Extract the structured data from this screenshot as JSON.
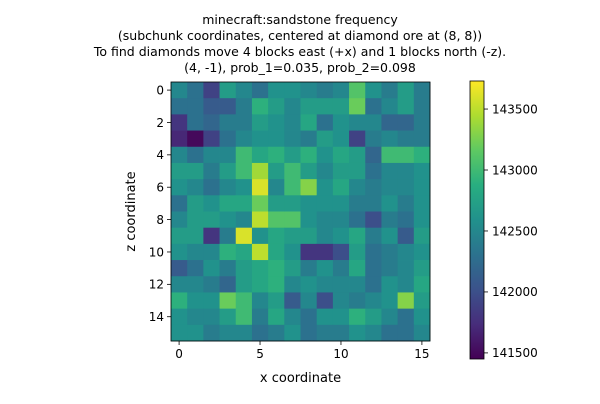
{
  "chart_data": {
    "type": "heatmap",
    "title_lines": [
      "minecraft:sandstone frequency",
      "(subchunk coordinates, centered at diamond ore at (8, 8))",
      "To find diamonds move 4 blocks east (+x) and 1 blocks north (-z).",
      "(4, -1), prob_1=0.035, prob_2=0.098"
    ],
    "xlabel": "x coordinate",
    "ylabel": "z coordinate",
    "x_ticks": [
      0,
      5,
      10,
      15
    ],
    "y_ticks": [
      0,
      2,
      4,
      6,
      8,
      10,
      12,
      14
    ],
    "grid_size": 16,
    "colorbar": {
      "min": 141450,
      "max": 143730,
      "ticks": [
        141500,
        142000,
        142500,
        143000,
        143500
      ],
      "tick_labels": [
        "141500",
        "142000",
        "142500",
        "143000",
        "143500"
      ]
    },
    "matrix": [
      [
        142500,
        142300,
        141900,
        142700,
        142500,
        142300,
        142600,
        142600,
        142500,
        142400,
        142500,
        143100,
        142600,
        142400,
        142700,
        142400
      ],
      [
        142300,
        142300,
        142100,
        142100,
        142400,
        142900,
        142700,
        142500,
        142700,
        142700,
        142700,
        143200,
        142300,
        142500,
        142700,
        142400
      ],
      [
        141800,
        142300,
        142200,
        142400,
        142400,
        142700,
        142600,
        142500,
        142800,
        142300,
        142600,
        142500,
        142500,
        142200,
        142200,
        142400
      ],
      [
        141700,
        141500,
        141900,
        142300,
        142500,
        142600,
        142600,
        142500,
        142400,
        142700,
        142600,
        141900,
        142400,
        142500,
        142400,
        142400
      ],
      [
        142500,
        142300,
        142500,
        142500,
        143000,
        142800,
        142900,
        142700,
        142900,
        142600,
        142800,
        142700,
        142200,
        143000,
        143000,
        142900
      ],
      [
        142700,
        142700,
        142400,
        142700,
        143000,
        143400,
        142700,
        143000,
        142700,
        142500,
        142700,
        142700,
        142300,
        142500,
        142500,
        142600
      ],
      [
        142600,
        142500,
        142300,
        142500,
        142600,
        143600,
        142500,
        143000,
        143300,
        142600,
        142800,
        142500,
        142400,
        142500,
        142500,
        142600
      ],
      [
        142300,
        142700,
        142600,
        142800,
        142800,
        143200,
        142700,
        142700,
        142600,
        142600,
        142600,
        142400,
        142400,
        142600,
        142400,
        142600
      ],
      [
        142500,
        142700,
        142700,
        142600,
        142500,
        143500,
        143100,
        143100,
        142600,
        142500,
        142500,
        142300,
        142000,
        142400,
        142300,
        142600
      ],
      [
        142700,
        142700,
        141800,
        142400,
        143600,
        142600,
        142800,
        142700,
        142700,
        142500,
        142600,
        142800,
        142400,
        142600,
        142100,
        142700
      ],
      [
        142600,
        142500,
        142500,
        142900,
        142800,
        143500,
        142800,
        142600,
        141800,
        141800,
        142000,
        142700,
        142300,
        142400,
        142500,
        142600
      ],
      [
        142100,
        142300,
        142600,
        142400,
        142700,
        142800,
        142900,
        142700,
        142400,
        142600,
        142400,
        142800,
        142300,
        142400,
        142500,
        142700
      ],
      [
        142500,
        142500,
        142400,
        142200,
        142700,
        142800,
        142900,
        142500,
        142600,
        142500,
        142500,
        142500,
        142300,
        142600,
        142500,
        142800
      ],
      [
        142900,
        142600,
        142600,
        143200,
        143000,
        142500,
        142700,
        142100,
        142500,
        142000,
        142500,
        142400,
        142500,
        142600,
        143300,
        142700
      ],
      [
        142600,
        142500,
        142500,
        142700,
        143000,
        142400,
        142800,
        142500,
        142300,
        142600,
        142600,
        142900,
        142700,
        142500,
        142300,
        142600
      ],
      [
        142600,
        142600,
        142400,
        142500,
        142500,
        142300,
        142400,
        142600,
        142300,
        142400,
        142400,
        142600,
        142500,
        142300,
        142300,
        142500
      ]
    ]
  }
}
